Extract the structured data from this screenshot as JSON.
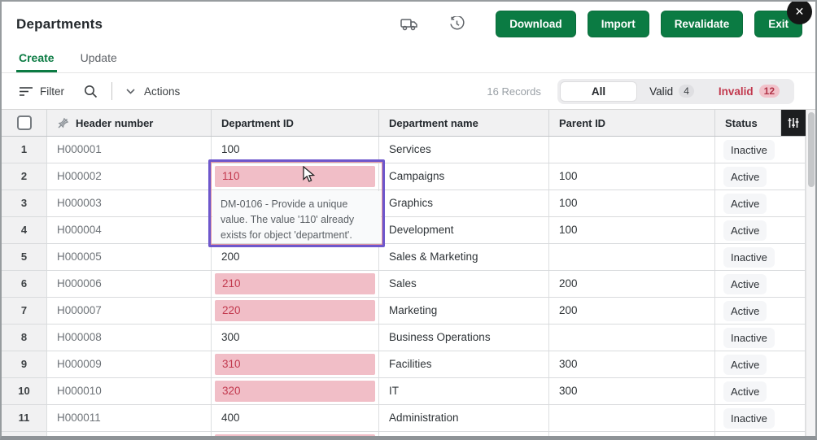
{
  "colors": {
    "accent_green": "#0b7b43",
    "invalid_text": "#c2394e",
    "invalid_bg": "#f1bec7",
    "selection_purple": "#6e57cc"
  },
  "titlebar": {
    "title": "Departments",
    "icons": [
      {
        "name": "delivery-truck-icon"
      },
      {
        "name": "history-icon"
      }
    ],
    "buttons": {
      "download": "Download",
      "import": "Import",
      "revalidate": "Revalidate",
      "exit": "Exit"
    },
    "close": "✕"
  },
  "tabs": {
    "create": "Create",
    "update": "Update"
  },
  "toolbar": {
    "filter": "Filter",
    "actions": "Actions",
    "records": "16 Records",
    "segments": {
      "all": "All",
      "valid": "Valid",
      "valid_count": "4",
      "invalid": "Invalid",
      "invalid_count": "12"
    }
  },
  "table": {
    "columns": [
      "Header number",
      "Department ID",
      "Department name",
      "Parent ID",
      "Status"
    ],
    "rows": [
      {
        "num": "1",
        "header": "H000001",
        "dept_id": "100",
        "invalid": false,
        "name": "Services",
        "parent": "",
        "status": "Inactive"
      },
      {
        "num": "2",
        "header": "H000002",
        "dept_id": "110",
        "invalid": true,
        "name": "Campaigns",
        "parent": "100",
        "status": "Active"
      },
      {
        "num": "3",
        "header": "H000003",
        "dept_id": "",
        "invalid": false,
        "name": "Graphics",
        "parent": "100",
        "status": "Active"
      },
      {
        "num": "4",
        "header": "H000004",
        "dept_id": "",
        "invalid": false,
        "name": "Development",
        "parent": "100",
        "status": "Active"
      },
      {
        "num": "5",
        "header": "H000005",
        "dept_id": "200",
        "invalid": false,
        "name": "Sales & Marketing",
        "parent": "",
        "status": "Inactive"
      },
      {
        "num": "6",
        "header": "H000006",
        "dept_id": "210",
        "invalid": true,
        "name": "Sales",
        "parent": "200",
        "status": "Active"
      },
      {
        "num": "7",
        "header": "H000007",
        "dept_id": "220",
        "invalid": true,
        "name": "Marketing",
        "parent": "200",
        "status": "Active"
      },
      {
        "num": "8",
        "header": "H000008",
        "dept_id": "300",
        "invalid": false,
        "name": "Business Operations",
        "parent": "",
        "status": "Inactive"
      },
      {
        "num": "9",
        "header": "H000009",
        "dept_id": "310",
        "invalid": true,
        "name": "Facilities",
        "parent": "300",
        "status": "Active"
      },
      {
        "num": "10",
        "header": "H000010",
        "dept_id": "320",
        "invalid": true,
        "name": "IT",
        "parent": "300",
        "status": "Active"
      },
      {
        "num": "11",
        "header": "H000011",
        "dept_id": "400",
        "invalid": false,
        "name": "Administration",
        "parent": "",
        "status": "Inactive"
      },
      {
        "num": "",
        "header": "",
        "dept_id": "",
        "invalid": true,
        "name": "",
        "parent": "",
        "status": ""
      }
    ]
  },
  "error_tooltip": {
    "text": "DM-0106 - Provide a unique value. The value '110' already exists for object 'department'."
  }
}
